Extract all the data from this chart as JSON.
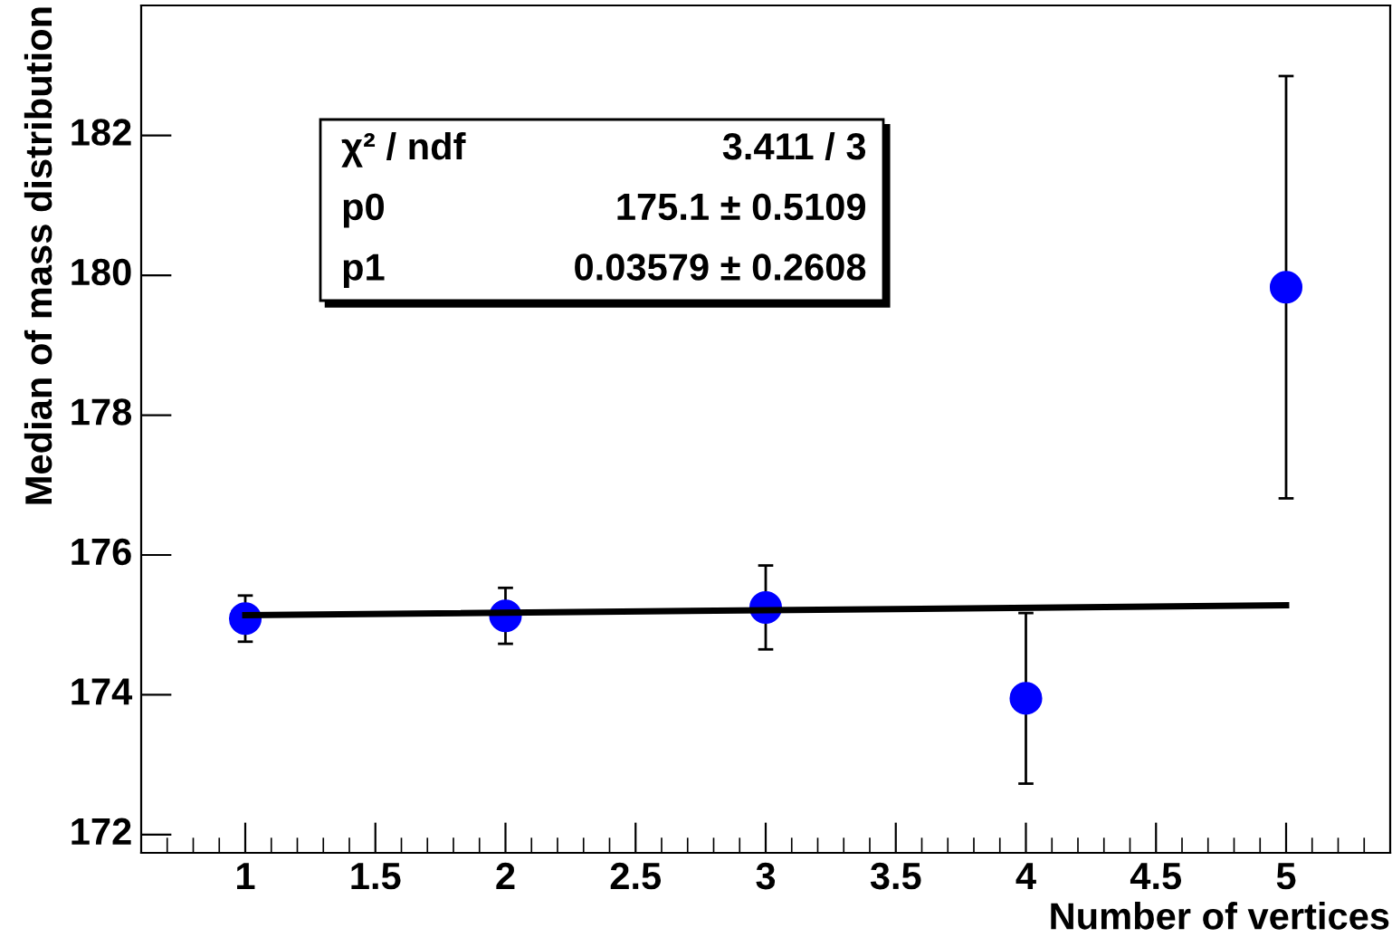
{
  "chart_data": {
    "type": "scatter",
    "xlabel": "Number of vertices",
    "ylabel": "Median of mass distribution",
    "xlim": [
      0.6,
      5.4
    ],
    "xticks": [
      1,
      1.5,
      2,
      2.5,
      3,
      3.5,
      4,
      4.5,
      5
    ],
    "ylim": [
      171.74,
      183.86
    ],
    "yticks": [
      172,
      174,
      176,
      178,
      180,
      182
    ],
    "grid": false,
    "legend": false,
    "series": [
      {
        "color": "#0000ff",
        "marker": "circle",
        "x": [
          1,
          2,
          3,
          4,
          5
        ],
        "values": [
          175.09,
          175.13,
          175.25,
          173.95,
          179.83
        ],
        "errors": [
          0.33,
          0.4,
          0.6,
          1.22,
          3.02
        ]
      },
      {
        "type": "line",
        "color": "#000000",
        "x": [
          1,
          5
        ],
        "values": [
          175.14,
          175.28
        ],
        "line_style": "solid"
      }
    ],
    "annotations": [
      "χ² / ndf",
      "3.411 / 3",
      "p0",
      "175.1 ± 0.5109",
      "p1",
      "0.03579 ± 0.2608"
    ]
  }
}
